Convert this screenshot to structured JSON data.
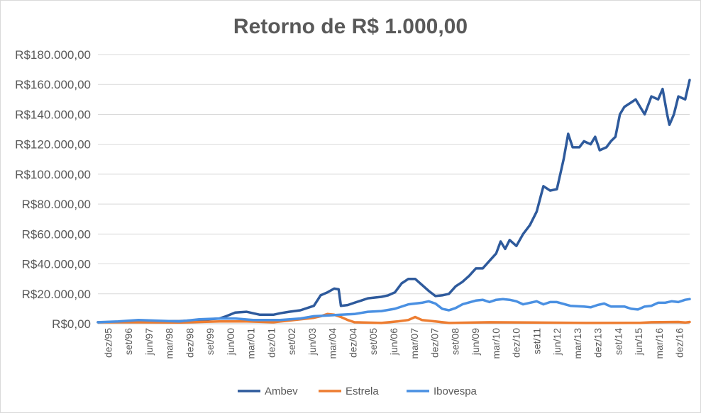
{
  "chart_data": {
    "type": "line",
    "title": "Retorno de R$ 1.000,00",
    "xlabel": "",
    "ylabel": "",
    "ylim": [
      0,
      180000
    ],
    "grid": true,
    "legend_position": "bottom",
    "y_ticks": [
      {
        "value": 0,
        "label": "R$0,00"
      },
      {
        "value": 20000,
        "label": "R$20.000,00"
      },
      {
        "value": 40000,
        "label": "R$40.000,00"
      },
      {
        "value": 60000,
        "label": "R$60.000,00"
      },
      {
        "value": 80000,
        "label": "R$80.000,00"
      },
      {
        "value": 100000,
        "label": "R$100.000,00"
      },
      {
        "value": 120000,
        "label": "R$120.000,00"
      },
      {
        "value": 140000,
        "label": "R$140.000,00"
      },
      {
        "value": 160000,
        "label": "R$160.000,00"
      },
      {
        "value": 180000,
        "label": "R$180.000,00"
      }
    ],
    "x": [
      "2003-05",
      "2003-07",
      "2005-12",
      "2006-06",
      "2008-07",
      "2012-07",
      "2017-06"
    ],
    "x_ticks": [
      "dez/95",
      "set/96",
      "jun/97",
      "mar/98",
      "dez/98",
      "set/99",
      "jun/00",
      "mar/01",
      "dez/01",
      "set/02",
      "jun/03",
      "mar/04",
      "dez/04",
      "set/05",
      "jun/06",
      "mar/07",
      "dez/07",
      "set/08",
      "jun/09",
      "mar/10",
      "dez/10",
      "set/11",
      "jun/12",
      "mar/13",
      "dez/13",
      "set/14",
      "jun/15",
      "mar/16",
      "dez/16"
    ],
    "series": [
      {
        "name": "Ambev",
        "color": "#2e5a9c",
        "points": [
          [
            "1995-12",
            1000
          ],
          [
            "1996-09",
            1200
          ],
          [
            "1997-06",
            1500
          ],
          [
            "1998-03",
            1800
          ],
          [
            "1998-12",
            1700
          ],
          [
            "1999-09",
            2500
          ],
          [
            "2000-06",
            3500
          ],
          [
            "2000-09",
            5000
          ],
          [
            "2001-01",
            7500
          ],
          [
            "2001-06",
            8000
          ],
          [
            "2001-09",
            7000
          ],
          [
            "2001-12",
            6000
          ],
          [
            "2002-06",
            6000
          ],
          [
            "2002-09",
            7000
          ],
          [
            "2003-01",
            8000
          ],
          [
            "2003-06",
            9000
          ],
          [
            "2003-12",
            12000
          ],
          [
            "2004-03",
            19000
          ],
          [
            "2004-06",
            21000
          ],
          [
            "2004-09",
            23500
          ],
          [
            "2004-11",
            23000
          ],
          [
            "2004-12",
            12000
          ],
          [
            "2005-03",
            12500
          ],
          [
            "2005-06",
            14000
          ],
          [
            "2005-09",
            15500
          ],
          [
            "2005-12",
            17000
          ],
          [
            "2006-06",
            18000
          ],
          [
            "2006-09",
            19000
          ],
          [
            "2006-12",
            21000
          ],
          [
            "2007-03",
            27000
          ],
          [
            "2007-06",
            30000
          ],
          [
            "2007-09",
            30000
          ],
          [
            "2007-12",
            26000
          ],
          [
            "2008-03",
            22000
          ],
          [
            "2008-06",
            18500
          ],
          [
            "2008-09",
            19000
          ],
          [
            "2008-12",
            20000
          ],
          [
            "2009-03",
            25000
          ],
          [
            "2009-06",
            28000
          ],
          [
            "2009-09",
            32000
          ],
          [
            "2009-12",
            37000
          ],
          [
            "2010-03",
            37000
          ],
          [
            "2010-06",
            42000
          ],
          [
            "2010-09",
            47000
          ],
          [
            "2010-11",
            55000
          ],
          [
            "2011-01",
            50000
          ],
          [
            "2011-03",
            56000
          ],
          [
            "2011-06",
            52000
          ],
          [
            "2011-09",
            60000
          ],
          [
            "2011-12",
            66000
          ],
          [
            "2012-03",
            75000
          ],
          [
            "2012-06",
            92000
          ],
          [
            "2012-09",
            89000
          ],
          [
            "2012-12",
            90000
          ],
          [
            "2013-03",
            110000
          ],
          [
            "2013-05",
            127000
          ],
          [
            "2013-07",
            118000
          ],
          [
            "2013-10",
            118000
          ],
          [
            "2013-12",
            122000
          ],
          [
            "2014-03",
            120000
          ],
          [
            "2014-05",
            125000
          ],
          [
            "2014-07",
            116000
          ],
          [
            "2014-10",
            118000
          ],
          [
            "2014-12",
            122000
          ],
          [
            "2015-02",
            125000
          ],
          [
            "2015-04",
            140000
          ],
          [
            "2015-06",
            145000
          ],
          [
            "2015-09",
            148000
          ],
          [
            "2015-11",
            150000
          ],
          [
            "2016-01",
            145000
          ],
          [
            "2016-03",
            140000
          ],
          [
            "2016-06",
            152000
          ],
          [
            "2016-09",
            150000
          ],
          [
            "2016-11",
            157000
          ],
          [
            "2017-01",
            140000
          ],
          [
            "2017-02",
            133000
          ],
          [
            "2017-04",
            140000
          ],
          [
            "2017-06",
            152000
          ],
          [
            "2017-09",
            150000
          ],
          [
            "2017-11",
            163000
          ]
        ]
      },
      {
        "name": "Estrela",
        "color": "#ed7d31",
        "points": [
          [
            "1995-12",
            1000
          ],
          [
            "1997-06",
            1000
          ],
          [
            "1998-12",
            800
          ],
          [
            "2000-06",
            1500
          ],
          [
            "2001-06",
            1500
          ],
          [
            "2002-06",
            1000
          ],
          [
            "2003-06",
            3000
          ],
          [
            "2003-12",
            4000
          ],
          [
            "2004-03",
            5000
          ],
          [
            "2004-06",
            6500
          ],
          [
            "2004-09",
            6000
          ],
          [
            "2004-12",
            4500
          ],
          [
            "2005-03",
            2500
          ],
          [
            "2005-06",
            1000
          ],
          [
            "2006-06",
            500
          ],
          [
            "2007-01",
            1500
          ],
          [
            "2007-06",
            2500
          ],
          [
            "2007-09",
            4500
          ],
          [
            "2007-12",
            2500
          ],
          [
            "2008-06",
            1500
          ],
          [
            "2008-12",
            500
          ],
          [
            "2010-06",
            1000
          ],
          [
            "2012-01",
            800
          ],
          [
            "2014-01",
            500
          ],
          [
            "2016-01",
            600
          ],
          [
            "2016-06",
            1000
          ],
          [
            "2017-06",
            1200
          ],
          [
            "2017-09",
            800
          ],
          [
            "2017-11",
            1200
          ]
        ]
      },
      {
        "name": "Ibovespa",
        "color": "#4a90e2",
        "points": [
          [
            "1995-12",
            1000
          ],
          [
            "1996-09",
            1500
          ],
          [
            "1997-06",
            2500
          ],
          [
            "1998-03",
            2000
          ],
          [
            "1998-12",
            1500
          ],
          [
            "1999-09",
            3000
          ],
          [
            "2000-06",
            3500
          ],
          [
            "2001-01",
            3500
          ],
          [
            "2001-09",
            2500
          ],
          [
            "2002-09",
            2500
          ],
          [
            "2003-06",
            3500
          ],
          [
            "2003-12",
            5000
          ],
          [
            "2004-06",
            5500
          ],
          [
            "2004-12",
            6000
          ],
          [
            "2005-06",
            6500
          ],
          [
            "2005-12",
            8000
          ],
          [
            "2006-06",
            8500
          ],
          [
            "2006-12",
            10000
          ],
          [
            "2007-06",
            13000
          ],
          [
            "2007-12",
            14000
          ],
          [
            "2008-03",
            15000
          ],
          [
            "2008-06",
            13500
          ],
          [
            "2008-09",
            10000
          ],
          [
            "2008-12",
            9000
          ],
          [
            "2009-03",
            10500
          ],
          [
            "2009-06",
            13000
          ],
          [
            "2009-12",
            15500
          ],
          [
            "2010-03",
            16000
          ],
          [
            "2010-06",
            14500
          ],
          [
            "2010-09",
            16000
          ],
          [
            "2010-12",
            16500
          ],
          [
            "2011-03",
            16000
          ],
          [
            "2011-06",
            15000
          ],
          [
            "2011-09",
            13000
          ],
          [
            "2011-12",
            14000
          ],
          [
            "2012-03",
            15000
          ],
          [
            "2012-06",
            13000
          ],
          [
            "2012-09",
            14500
          ],
          [
            "2012-12",
            14500
          ],
          [
            "2013-06",
            12000
          ],
          [
            "2013-12",
            11500
          ],
          [
            "2014-03",
            11000
          ],
          [
            "2014-06",
            12500
          ],
          [
            "2014-09",
            13500
          ],
          [
            "2014-12",
            11500
          ],
          [
            "2015-06",
            11500
          ],
          [
            "2015-09",
            10000
          ],
          [
            "2015-12",
            9500
          ],
          [
            "2016-03",
            11500
          ],
          [
            "2016-06",
            12000
          ],
          [
            "2016-09",
            14000
          ],
          [
            "2016-12",
            14000
          ],
          [
            "2017-03",
            15000
          ],
          [
            "2017-06",
            14500
          ],
          [
            "2017-09",
            16000
          ],
          [
            "2017-11",
            16500
          ]
        ]
      }
    ]
  }
}
